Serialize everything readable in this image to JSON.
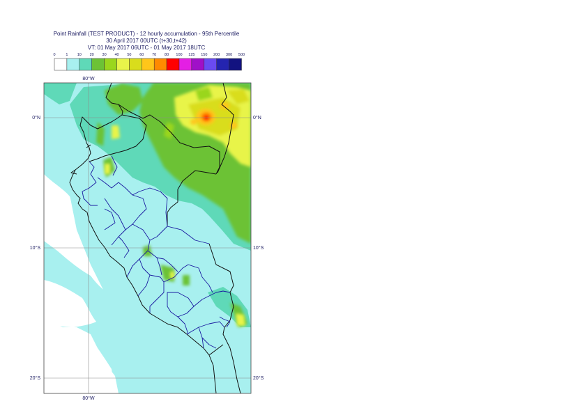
{
  "header": {
    "title": "Point Rainfall (TEST PRODUCT) - 12 hourly accumulation - 95th Percentile",
    "run": "30 April 2017 00UTC (t+30,t+42)",
    "valid": "VT: 01 May 2017 06UTC - 01 May 2017 18UTC"
  },
  "legend": {
    "thresholds": [
      "0",
      "1",
      "10",
      "20",
      "30",
      "40",
      "50",
      "60",
      "70",
      "80",
      "100",
      "125",
      "150",
      "200",
      "300",
      "500"
    ],
    "colors": [
      "#ffffff",
      "#a8f0ef",
      "#5fd9b8",
      "#6cc236",
      "#9ad61d",
      "#e8f44a",
      "#d9dd1c",
      "#ffc61a",
      "#ff8a00",
      "#ff0000",
      "#e41fe4",
      "#a010c8",
      "#6a4bf2",
      "#2424b0",
      "#121280"
    ]
  },
  "map": {
    "lon_label_top": "80°W",
    "lon_label_bottom": "80°W",
    "lat_labels": [
      {
        "left": "0°N",
        "right": "0°N"
      },
      {
        "left": "10°S",
        "right": "10°S"
      },
      {
        "left": "20°S",
        "right": "20°S"
      }
    ],
    "field_colors": {
      "sea": "#a8f0ef",
      "low": "#5fd9b8",
      "mid": "#6cc236",
      "mid2": "#9ad61d",
      "high": "#e8f44a",
      "higher": "#d9dd1c",
      "peak1": "#ffc61a",
      "peak2": "#ff8a00",
      "peak3": "#ff0000"
    }
  }
}
